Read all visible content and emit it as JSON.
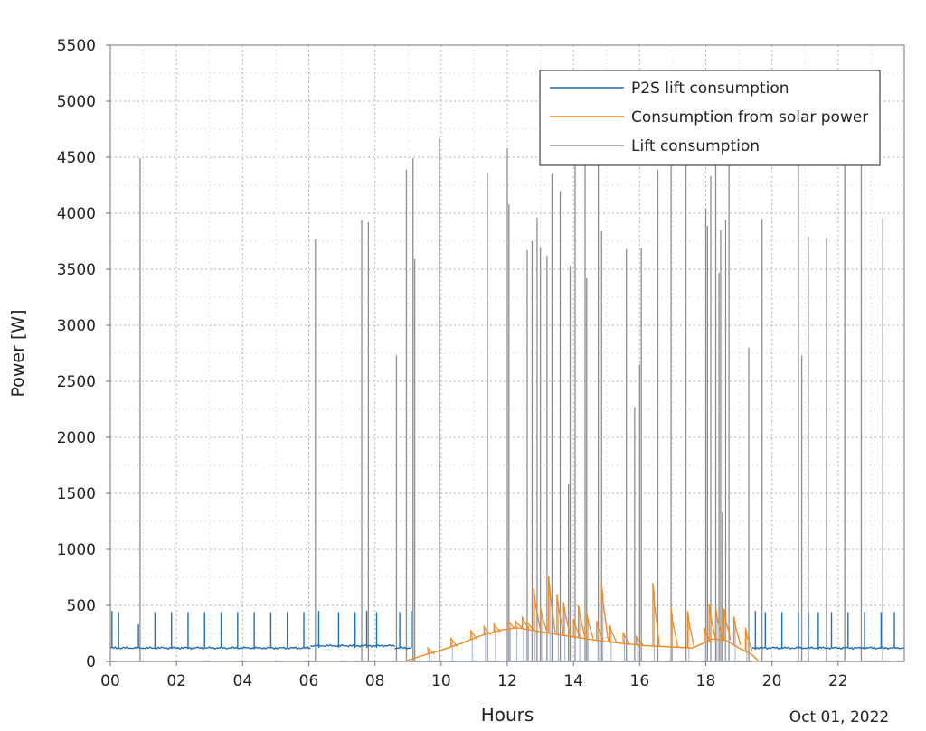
{
  "chart_data": {
    "type": "line",
    "xlabel": "Hours",
    "ylabel": "Power [W]",
    "date_label": "Oct 01, 2022",
    "xlim": [
      0,
      24
    ],
    "ylim": [
      0,
      5500
    ],
    "x_ticks": [
      0,
      2,
      4,
      6,
      8,
      10,
      12,
      14,
      16,
      18,
      20,
      22
    ],
    "x_tick_labels": [
      "00",
      "02",
      "04",
      "06",
      "08",
      "10",
      "12",
      "14",
      "16",
      "18",
      "20",
      "22"
    ],
    "y_ticks": [
      0,
      500,
      1000,
      1500,
      2000,
      2500,
      3000,
      3500,
      4000,
      4500,
      5000,
      5500
    ],
    "y_tick_labels": [
      "0",
      "500",
      "1000",
      "1500",
      "2000",
      "2500",
      "3000",
      "3500",
      "4000",
      "4500",
      "5000",
      "5500"
    ],
    "grid": true,
    "legend_position": "top-right",
    "series": [
      {
        "name": "P2S lift consumption",
        "color": "#1f6fb3",
        "baseline_segments": [
          [
            0,
            6.05,
            120
          ],
          [
            6.05,
            8.6,
            140
          ],
          [
            8.6,
            9.1,
            120
          ],
          [
            19.4,
            24,
            120
          ]
        ],
        "spikes": [
          [
            0.05,
            450
          ],
          [
            0.25,
            440
          ],
          [
            0.85,
            330
          ],
          [
            1.35,
            440
          ],
          [
            1.85,
            440
          ],
          [
            2.35,
            440
          ],
          [
            2.85,
            440
          ],
          [
            3.35,
            440
          ],
          [
            3.85,
            440
          ],
          [
            4.35,
            440
          ],
          [
            4.85,
            440
          ],
          [
            5.35,
            440
          ],
          [
            5.85,
            440
          ],
          [
            6.3,
            450
          ],
          [
            6.9,
            440
          ],
          [
            7.4,
            440
          ],
          [
            7.75,
            450
          ],
          [
            8.05,
            440
          ],
          [
            8.75,
            440
          ],
          [
            9.1,
            450
          ],
          [
            19.5,
            450
          ],
          [
            19.8,
            440
          ],
          [
            20.3,
            440
          ],
          [
            20.8,
            440
          ],
          [
            21.1,
            440
          ],
          [
            21.4,
            440
          ],
          [
            21.8,
            440
          ],
          [
            22.3,
            440
          ],
          [
            22.8,
            440
          ],
          [
            23.3,
            440
          ],
          [
            23.7,
            440
          ]
        ]
      },
      {
        "name": "Consumption from solar power",
        "color": "#f0891e",
        "baseline_curve": [
          [
            8.9,
            0
          ],
          [
            9.3,
            40
          ],
          [
            10.0,
            100
          ],
          [
            10.6,
            160
          ],
          [
            11.2,
            230
          ],
          [
            11.8,
            280
          ],
          [
            12.3,
            300
          ],
          [
            12.9,
            270
          ],
          [
            13.5,
            240
          ],
          [
            14.2,
            210
          ],
          [
            14.9,
            180
          ],
          [
            15.5,
            160
          ],
          [
            16.2,
            140
          ],
          [
            16.9,
            130
          ],
          [
            17.6,
            120
          ],
          [
            18.2,
            200
          ],
          [
            18.6,
            190
          ],
          [
            19.0,
            120
          ],
          [
            19.4,
            60
          ],
          [
            19.6,
            0
          ]
        ],
        "spikes": [
          [
            9.6,
            120
          ],
          [
            10.3,
            210
          ],
          [
            10.9,
            280
          ],
          [
            11.3,
            310
          ],
          [
            11.6,
            330
          ],
          [
            12.05,
            350
          ],
          [
            12.25,
            360
          ],
          [
            12.45,
            400
          ],
          [
            12.6,
            350
          ],
          [
            12.8,
            650
          ],
          [
            13.0,
            480
          ],
          [
            13.25,
            760
          ],
          [
            13.5,
            600
          ],
          [
            13.7,
            530
          ],
          [
            14.0,
            380
          ],
          [
            14.15,
            500
          ],
          [
            14.4,
            430
          ],
          [
            14.7,
            360
          ],
          [
            14.85,
            700
          ],
          [
            15.1,
            320
          ],
          [
            15.5,
            260
          ],
          [
            15.9,
            220
          ],
          [
            16.4,
            700
          ],
          [
            16.95,
            470
          ],
          [
            17.45,
            450
          ],
          [
            17.95,
            300
          ],
          [
            18.1,
            510
          ],
          [
            18.3,
            480
          ],
          [
            18.55,
            470
          ],
          [
            18.85,
            400
          ],
          [
            19.2,
            300
          ]
        ]
      },
      {
        "name": "Lift consumption",
        "color": "#8e8e8e",
        "spikes": [
          [
            0.9,
            4490
          ],
          [
            6.2,
            3770
          ],
          [
            7.6,
            3940
          ],
          [
            7.8,
            3920
          ],
          [
            8.65,
            2730
          ],
          [
            8.95,
            4390
          ],
          [
            9.15,
            4490
          ],
          [
            9.2,
            3590
          ],
          [
            9.95,
            4670
          ],
          [
            11.4,
            4360
          ],
          [
            12.0,
            4580
          ],
          [
            12.05,
            4080
          ],
          [
            12.6,
            3670
          ],
          [
            12.75,
            3750
          ],
          [
            12.9,
            3960
          ],
          [
            13.0,
            3700
          ],
          [
            13.2,
            3620
          ],
          [
            13.35,
            4350
          ],
          [
            13.6,
            4200
          ],
          [
            13.85,
            1580
          ],
          [
            13.9,
            3530
          ],
          [
            14.05,
            4480
          ],
          [
            14.35,
            4470
          ],
          [
            14.4,
            3420
          ],
          [
            14.75,
            4490
          ],
          [
            14.85,
            3840
          ],
          [
            15.6,
            3680
          ],
          [
            15.85,
            2270
          ],
          [
            16.0,
            2650
          ],
          [
            16.05,
            3690
          ],
          [
            16.55,
            4390
          ],
          [
            16.95,
            4480
          ],
          [
            17.4,
            4460
          ],
          [
            18.0,
            4040
          ],
          [
            18.05,
            3890
          ],
          [
            18.15,
            4330
          ],
          [
            18.3,
            4470
          ],
          [
            18.4,
            3470
          ],
          [
            18.45,
            3850
          ],
          [
            18.5,
            1330
          ],
          [
            18.6,
            3940
          ],
          [
            18.7,
            4470
          ],
          [
            19.3,
            2800
          ],
          [
            19.7,
            3950
          ],
          [
            20.8,
            4450
          ],
          [
            20.9,
            2730
          ],
          [
            21.1,
            3790
          ],
          [
            21.65,
            3780
          ],
          [
            22.2,
            4490
          ],
          [
            22.7,
            4490
          ],
          [
            23.35,
            3960
          ]
        ]
      }
    ]
  }
}
